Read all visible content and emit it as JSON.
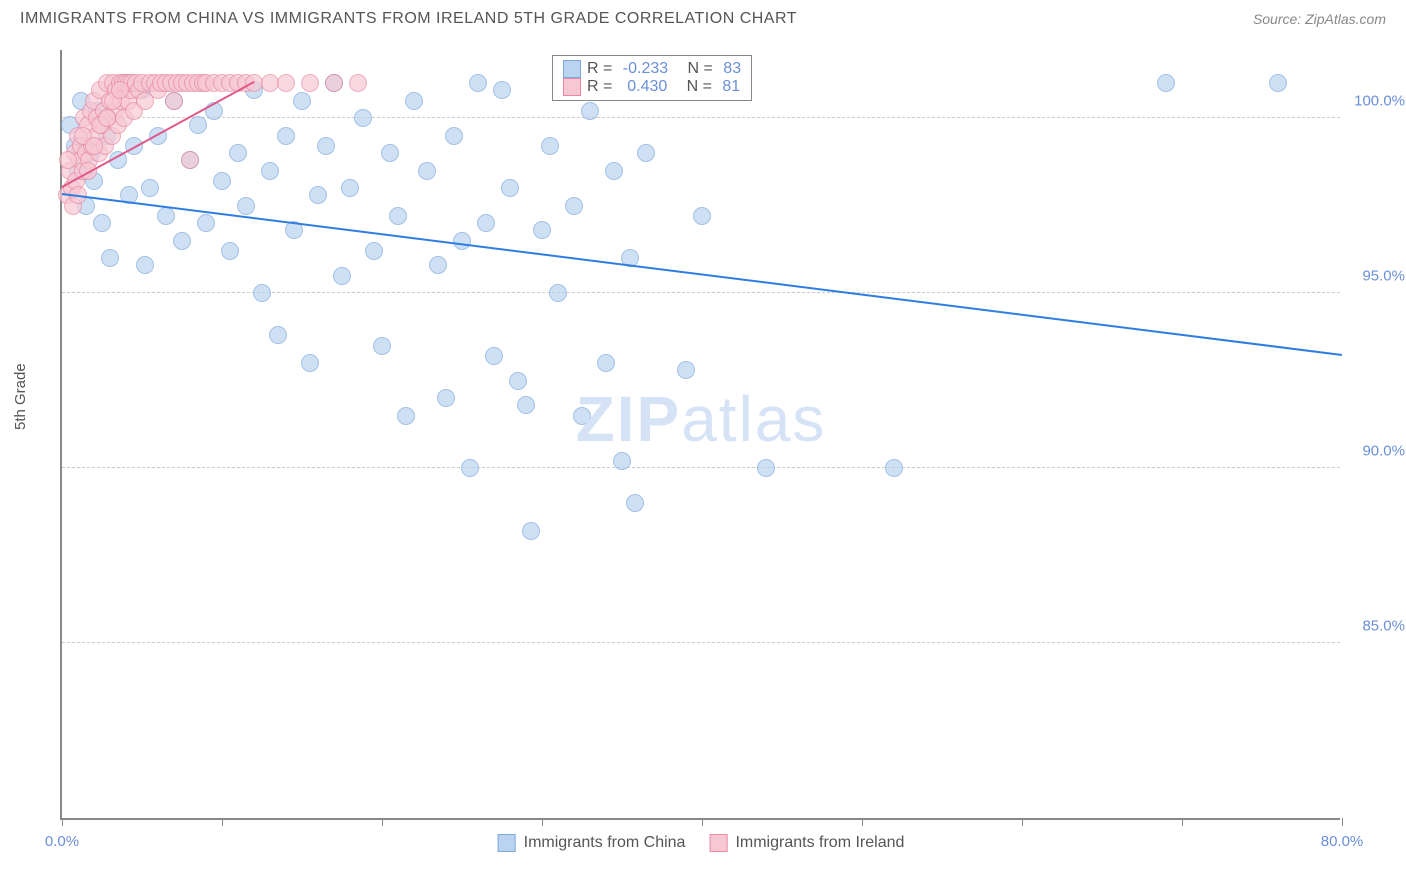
{
  "header": {
    "title": "IMMIGRANTS FROM CHINA VS IMMIGRANTS FROM IRELAND 5TH GRADE CORRELATION CHART",
    "source": "Source: ZipAtlas.com"
  },
  "chart": {
    "type": "scatter",
    "ylabel": "5th Grade",
    "xlim": [
      0,
      80
    ],
    "ylim": [
      80,
      102
    ],
    "xticks": [
      0,
      10,
      20,
      30,
      40,
      50,
      60,
      70,
      80
    ],
    "xtick_labels": {
      "0": "0.0%",
      "80": "80.0%"
    },
    "yticks": [
      85,
      90,
      95,
      100
    ],
    "ytick_labels": {
      "85": "85.0%",
      "90": "90.0%",
      "95": "95.0%",
      "100": "100.0%"
    },
    "grid_color": "#cccccc",
    "background_color": "#ffffff",
    "axis_color": "#888888",
    "tick_label_color": "#6a8fd8",
    "watermark": {
      "text_bold": "ZIP",
      "text_light": "atlas",
      "color": "#d6e3f7"
    },
    "series": [
      {
        "name": "Immigrants from China",
        "color_fill": "#b9d3f0",
        "color_stroke": "#7fa8d9",
        "marker_size": 18,
        "marker_opacity": 0.7,
        "trend": {
          "x1": 0,
          "y1": 97.8,
          "x2": 80,
          "y2": 93.2,
          "color": "#2f7de1",
          "width": 2
        },
        "R": "-0.233",
        "N": "83",
        "points": [
          [
            0.5,
            99.8
          ],
          [
            0.8,
            99.2
          ],
          [
            1.0,
            98.5
          ],
          [
            1.2,
            100.5
          ],
          [
            1.5,
            97.5
          ],
          [
            1.8,
            99.0
          ],
          [
            2.0,
            98.2
          ],
          [
            2.2,
            100.2
          ],
          [
            2.5,
            97.0
          ],
          [
            2.8,
            99.5
          ],
          [
            3.0,
            96.0
          ],
          [
            3.5,
            98.8
          ],
          [
            4.0,
            101.0
          ],
          [
            4.2,
            97.8
          ],
          [
            4.5,
            99.2
          ],
          [
            5.0,
            100.8
          ],
          [
            5.2,
            95.8
          ],
          [
            5.5,
            98.0
          ],
          [
            6.0,
            99.5
          ],
          [
            6.5,
            97.2
          ],
          [
            7.0,
            100.5
          ],
          [
            7.5,
            96.5
          ],
          [
            8.0,
            98.8
          ],
          [
            8.5,
            99.8
          ],
          [
            9.0,
            97.0
          ],
          [
            9.5,
            100.2
          ],
          [
            10.0,
            98.2
          ],
          [
            10.5,
            96.2
          ],
          [
            11.0,
            99.0
          ],
          [
            11.5,
            97.5
          ],
          [
            12.0,
            100.8
          ],
          [
            12.5,
            95.0
          ],
          [
            13.0,
            98.5
          ],
          [
            13.5,
            93.8
          ],
          [
            14.0,
            99.5
          ],
          [
            14.5,
            96.8
          ],
          [
            15.0,
            100.5
          ],
          [
            15.5,
            93.0
          ],
          [
            16.0,
            97.8
          ],
          [
            16.5,
            99.2
          ],
          [
            17.0,
            101.0
          ],
          [
            17.5,
            95.5
          ],
          [
            18.0,
            98.0
          ],
          [
            18.8,
            100.0
          ],
          [
            19.5,
            96.2
          ],
          [
            20.0,
            93.5
          ],
          [
            20.5,
            99.0
          ],
          [
            21.0,
            97.2
          ],
          [
            21.5,
            91.5
          ],
          [
            22.0,
            100.5
          ],
          [
            22.8,
            98.5
          ],
          [
            23.5,
            95.8
          ],
          [
            24.0,
            92.0
          ],
          [
            24.5,
            99.5
          ],
          [
            25.0,
            96.5
          ],
          [
            25.5,
            90.0
          ],
          [
            26.0,
            101.0
          ],
          [
            26.5,
            97.0
          ],
          [
            27.0,
            93.2
          ],
          [
            27.5,
            100.8
          ],
          [
            28.0,
            98.0
          ],
          [
            28.5,
            92.5
          ],
          [
            29.0,
            91.8
          ],
          [
            29.3,
            88.2
          ],
          [
            30.0,
            96.8
          ],
          [
            30.5,
            99.2
          ],
          [
            31.0,
            95.0
          ],
          [
            32.0,
            97.5
          ],
          [
            32.5,
            91.5
          ],
          [
            33.0,
            100.2
          ],
          [
            34.0,
            93.0
          ],
          [
            34.5,
            98.5
          ],
          [
            35.0,
            90.2
          ],
          [
            35.5,
            96.0
          ],
          [
            35.8,
            89.0
          ],
          [
            36.5,
            99.0
          ],
          [
            39.0,
            92.8
          ],
          [
            39.5,
            101.0
          ],
          [
            40.0,
            97.2
          ],
          [
            44.0,
            90.0
          ],
          [
            52.0,
            90.0
          ],
          [
            69.0,
            101.0
          ],
          [
            76.0,
            101.0
          ]
        ]
      },
      {
        "name": "Immigrants from Ireland",
        "color_fill": "#f7c8d4",
        "color_stroke": "#e88aa3",
        "marker_size": 18,
        "marker_opacity": 0.7,
        "trend": {
          "x1": 0,
          "y1": 98.0,
          "x2": 12,
          "y2": 101.0,
          "color": "#e15888",
          "width": 2
        },
        "R": "0.430",
        "N": "81",
        "points": [
          [
            0.3,
            97.8
          ],
          [
            0.5,
            98.5
          ],
          [
            0.6,
            98.0
          ],
          [
            0.8,
            99.0
          ],
          [
            0.9,
            98.2
          ],
          [
            1.0,
            99.5
          ],
          [
            1.1,
            98.8
          ],
          [
            1.2,
            99.2
          ],
          [
            1.3,
            98.5
          ],
          [
            1.4,
            100.0
          ],
          [
            1.5,
            99.0
          ],
          [
            1.6,
            99.8
          ],
          [
            1.7,
            98.8
          ],
          [
            1.8,
            100.2
          ],
          [
            1.9,
            99.2
          ],
          [
            2.0,
            100.5
          ],
          [
            2.1,
            99.5
          ],
          [
            2.2,
            100.0
          ],
          [
            2.3,
            99.0
          ],
          [
            2.4,
            100.8
          ],
          [
            2.5,
            99.8
          ],
          [
            2.6,
            100.2
          ],
          [
            2.7,
            99.2
          ],
          [
            2.8,
            101.0
          ],
          [
            2.9,
            100.0
          ],
          [
            3.0,
            100.5
          ],
          [
            3.1,
            99.5
          ],
          [
            3.2,
            101.0
          ],
          [
            3.3,
            100.2
          ],
          [
            3.4,
            100.8
          ],
          [
            3.5,
            99.8
          ],
          [
            3.6,
            101.0
          ],
          [
            3.7,
            100.5
          ],
          [
            3.8,
            101.0
          ],
          [
            3.9,
            100.0
          ],
          [
            4.0,
            101.0
          ],
          [
            4.1,
            100.5
          ],
          [
            4.2,
            101.0
          ],
          [
            4.3,
            100.8
          ],
          [
            4.4,
            101.0
          ],
          [
            4.5,
            100.2
          ],
          [
            4.6,
            101.0
          ],
          [
            4.8,
            100.8
          ],
          [
            5.0,
            101.0
          ],
          [
            5.2,
            100.5
          ],
          [
            5.5,
            101.0
          ],
          [
            5.8,
            101.0
          ],
          [
            6.0,
            100.8
          ],
          [
            6.2,
            101.0
          ],
          [
            6.5,
            101.0
          ],
          [
            6.8,
            101.0
          ],
          [
            7.0,
            100.5
          ],
          [
            7.2,
            101.0
          ],
          [
            7.5,
            101.0
          ],
          [
            7.8,
            101.0
          ],
          [
            8.0,
            98.8
          ],
          [
            8.2,
            101.0
          ],
          [
            8.5,
            101.0
          ],
          [
            8.8,
            101.0
          ],
          [
            9.0,
            101.0
          ],
          [
            9.5,
            101.0
          ],
          [
            10.0,
            101.0
          ],
          [
            10.5,
            101.0
          ],
          [
            11.0,
            101.0
          ],
          [
            11.5,
            101.0
          ],
          [
            12.0,
            101.0
          ],
          [
            13.0,
            101.0
          ],
          [
            14.0,
            101.0
          ],
          [
            15.5,
            101.0
          ],
          [
            17.0,
            101.0
          ],
          [
            18.5,
            101.0
          ],
          [
            0.4,
            98.8
          ],
          [
            0.7,
            97.5
          ],
          [
            1.0,
            97.8
          ],
          [
            1.3,
            99.5
          ],
          [
            1.6,
            98.5
          ],
          [
            2.0,
            99.2
          ],
          [
            2.4,
            99.8
          ],
          [
            2.8,
            100.0
          ],
          [
            3.2,
            100.5
          ],
          [
            3.6,
            100.8
          ]
        ]
      }
    ],
    "legend_top": {
      "stat_label_color": "#555555",
      "stat_value_color": "#6a8fd8"
    },
    "legend_bottom": {
      "label_color": "#555555"
    }
  }
}
